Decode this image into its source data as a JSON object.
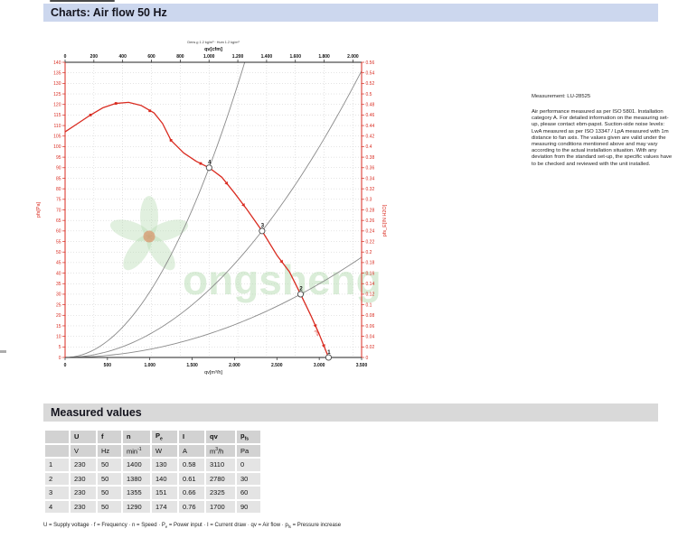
{
  "page": {
    "title": "Charts: Air flow 50 Hz"
  },
  "colors": {
    "accent_red": "#d92b20",
    "curve_gray": "#8a8a8a",
    "grid": "#c9c9c9",
    "frame_dark": "#222222",
    "header_band": "#ccd7ee",
    "section_band": "#d9d9d9",
    "watermark_green": "#b7dcb2",
    "watermark_center": "#dd7a4a"
  },
  "note": {
    "measurement": "Measurement: LU-28525",
    "body": "Air performance measured as per ISO 5801. Installation category A. For detailed information on the measuring set-up, please contact ebm-papst. Suction-side noise levels: LwA measured as per ISO 13347 / LpA measured with 1m distance to fan axis. The values given are valid under the measuring conditions mentioned above and may vary according to the actual installation situation. With any deviation from the standard set-up, the specific values have to be checked and reviewed with the unit installed."
  },
  "chart_data": {
    "type": "line",
    "title": "Air flow 50 Hz",
    "xlabel": "qv[m³/h]",
    "xlabel_top": "qv[cfm]",
    "ylabel_left": "pfs[Pa]",
    "ylabel_right": "pfs_E[IN H2O]",
    "conditions_note": "Dens ϱ 1.2 kg/m³ · Hum 1.2 kg/m³",
    "grid": "dotted",
    "x_range_m3h": [
      0,
      3500
    ],
    "x_ticks_m3h": {
      "step": 500,
      "labels": [
        "0",
        "500",
        "1.000",
        "1.500",
        "2.000",
        "2.500",
        "3.000",
        "3.500"
      ]
    },
    "x_ticks_cfm": {
      "step": 200,
      "max": 2000,
      "cfm_to_m3h": 1.699,
      "labels": [
        "0",
        "200",
        "400",
        "600",
        "800",
        "1.000",
        "1.200",
        "1.400",
        "1.600",
        "1.800",
        "2.000"
      ]
    },
    "y_range_pa": [
      0,
      140
    ],
    "y_tick_step_pa": 5,
    "y_range_inh2o": [
      0,
      0.56
    ],
    "y_tick_step_inh2o": 0.02,
    "fan_curve": {
      "name": "fan pressure curve pfs",
      "color": "#d92b20",
      "points": [
        [
          0,
          107
        ],
        [
          150,
          111
        ],
        [
          300,
          115
        ],
        [
          450,
          118.5
        ],
        [
          600,
          120.5
        ],
        [
          750,
          121
        ],
        [
          900,
          119.5
        ],
        [
          1050,
          116
        ],
        [
          1150,
          111
        ],
        [
          1250,
          103
        ],
        [
          1400,
          97
        ],
        [
          1550,
          93
        ],
        [
          1700,
          90
        ],
        [
          1850,
          85.5
        ],
        [
          2000,
          78
        ],
        [
          2150,
          70
        ],
        [
          2325,
          60
        ],
        [
          2500,
          48.5
        ],
        [
          2650,
          40.5
        ],
        [
          2780,
          30
        ],
        [
          2900,
          20
        ],
        [
          3000,
          11
        ],
        [
          3110,
          0
        ]
      ]
    },
    "square_markers": [
      [
        300,
        115
      ],
      [
        600,
        120.5
      ],
      [
        1000,
        117
      ],
      [
        1250,
        103
      ],
      [
        1600,
        92
      ]
    ],
    "arrow_markers_q": [
      1900,
      2100,
      2550,
      2950,
      3050
    ],
    "system_curves": [
      {
        "name": "load curve through point 4",
        "through": [
          1700,
          90
        ]
      },
      {
        "name": "load curve through point 3",
        "through": [
          2325,
          60
        ]
      },
      {
        "name": "load curve through point 2",
        "through": [
          2780,
          30
        ]
      }
    ],
    "operating_points": [
      {
        "label": "1",
        "qv": 3110,
        "pfs": 0
      },
      {
        "label": "2",
        "qv": 2780,
        "pfs": 30
      },
      {
        "label": "3",
        "qv": 2325,
        "pfs": 60
      },
      {
        "label": "4",
        "qv": 1700,
        "pfs": 90
      }
    ],
    "curve_end_label": "pfs",
    "watermark_text": "ongsheng"
  },
  "table": {
    "section_title": "Measured values",
    "columns": [
      {
        "base": "",
        "sub": ""
      },
      {
        "base": "U",
        "sub": ""
      },
      {
        "base": "f",
        "sub": ""
      },
      {
        "base": "n",
        "sub": ""
      },
      {
        "base": "P",
        "sub": "e"
      },
      {
        "base": "I",
        "sub": ""
      },
      {
        "base": "qv",
        "sub": ""
      },
      {
        "base": "p",
        "sub": "fs"
      }
    ],
    "units": [
      {
        "pre": "",
        "sup": "",
        "post": ""
      },
      {
        "pre": "V",
        "sup": "",
        "post": ""
      },
      {
        "pre": "Hz",
        "sup": "",
        "post": ""
      },
      {
        "pre": "min",
        "sup": "-1",
        "post": ""
      },
      {
        "pre": "W",
        "sup": "",
        "post": ""
      },
      {
        "pre": "A",
        "sup": "",
        "post": ""
      },
      {
        "pre": "m",
        "sup": "3",
        "post": "/h"
      },
      {
        "pre": "Pa",
        "sup": "",
        "post": ""
      }
    ],
    "rows": [
      [
        "1",
        "230",
        "50",
        "1400",
        "130",
        "0.58",
        "3110",
        "0"
      ],
      [
        "2",
        "230",
        "50",
        "1380",
        "140",
        "0.61",
        "2780",
        "30"
      ],
      [
        "3",
        "230",
        "50",
        "1355",
        "151",
        "0.66",
        "2325",
        "60"
      ],
      [
        "4",
        "230",
        "50",
        "1290",
        "174",
        "0.76",
        "1700",
        "90"
      ]
    ],
    "legend_segments": [
      {
        "text": "U = Supply voltage · f = Frequency · n = Speed · P"
      },
      {
        "sub": "e"
      },
      {
        "text": " = Power input · I = Current draw · qv = Air flow · p"
      },
      {
        "sub": "fs"
      },
      {
        "text": " = Pressure increase"
      }
    ]
  }
}
